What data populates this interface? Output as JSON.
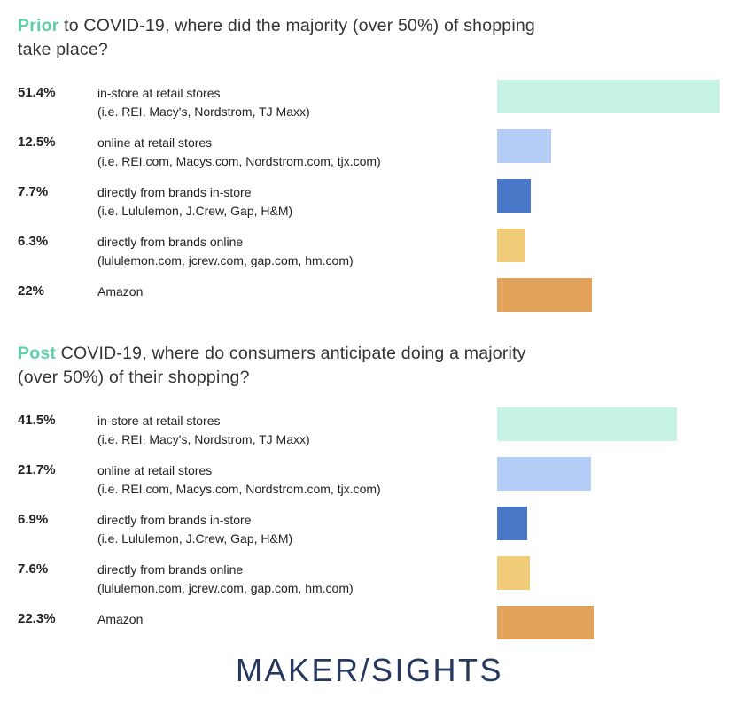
{
  "colors": {
    "accent_text": "#5fd0a8",
    "bar_colors": [
      "#c7f3e6",
      "#b3cdf6",
      "#4a78c8",
      "#f0cb78",
      "#e3a25a"
    ]
  },
  "chart_data": [
    {
      "type": "bar",
      "orientation": "horizontal",
      "title_accent": "Prior",
      "title_rest": " to COVID-19, where did the majority (over 50%) of shopping take place?",
      "xlim": [
        0,
        51.4
      ],
      "categories": [
        {
          "label": "in-store at retail stores",
          "sub": "(i.e. REI, Macy's, Nordstrom, TJ Maxx)"
        },
        {
          "label": "online at retail stores",
          "sub": "(i.e. REI.com, Macys.com, Nordstrom.com, tjx.com)"
        },
        {
          "label": "directly from brands in-store",
          "sub": "(i.e. Lululemon, J.Crew, Gap, H&M)"
        },
        {
          "label": "directly from brands online",
          "sub": "(lululemon.com, jcrew.com, gap.com, hm.com)"
        },
        {
          "label": "Amazon",
          "sub": ""
        }
      ],
      "values": [
        51.4,
        12.5,
        7.7,
        6.3,
        22
      ],
      "value_labels": [
        "51.4%",
        "12.5%",
        "7.7%",
        "6.3%",
        "22%"
      ]
    },
    {
      "type": "bar",
      "orientation": "horizontal",
      "title_accent": "Post",
      "title_rest": " COVID-19, where do consumers anticipate doing a majority (over 50%) of their shopping?",
      "xlim": [
        0,
        51.4
      ],
      "categories": [
        {
          "label": "in-store at retail stores",
          "sub": "(i.e. REI, Macy's, Nordstrom, TJ Maxx)"
        },
        {
          "label": "online at retail stores",
          "sub": "(i.e. REI.com, Macys.com, Nordstrom.com, tjx.com)"
        },
        {
          "label": "directly from brands in-store",
          "sub": "(i.e. Lululemon, J.Crew, Gap, H&M)"
        },
        {
          "label": "directly from brands online",
          "sub": "(lululemon.com, jcrew.com, gap.com, hm.com)"
        },
        {
          "label": "Amazon",
          "sub": ""
        }
      ],
      "values": [
        41.5,
        21.7,
        6.9,
        7.6,
        22.3
      ],
      "value_labels": [
        "41.5%",
        "21.7%",
        "6.9%",
        "7.6%",
        "22.3%"
      ]
    }
  ],
  "brand": "MAKER/SIGHTS"
}
